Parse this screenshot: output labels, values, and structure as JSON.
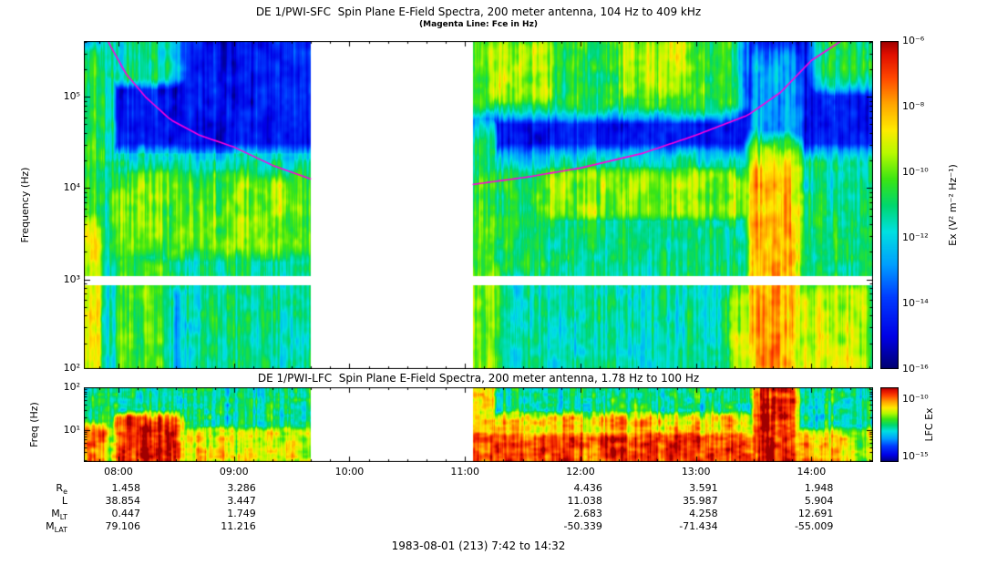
{
  "chart_data": {
    "type": "heatmap",
    "description": "Two stacked frequency-time radio spectrograms (dynamic spectra) from the DE 1 Plasma Wave Instrument with rainbow color scale, a magenta electron cyclotron frequency (Fce) overlay line, a white data gap between ~09:40 and ~11:04, orbit ephemeris rows and a date footer.",
    "footer": "1983-08-01 (213) 7:42 to 14:32",
    "time_range_min": [
      0,
      410
    ],
    "time_start_label": "7:42",
    "time_end_label": "14:32",
    "data_gaps_min": [
      [
        118,
        202
      ]
    ],
    "time_ticks": [
      {
        "label": "08:00",
        "t_min": 18
      },
      {
        "label": "09:00",
        "t_min": 78
      },
      {
        "label": "10:00",
        "t_min": 138
      },
      {
        "label": "11:00",
        "t_min": 198
      },
      {
        "label": "12:00",
        "t_min": 258
      },
      {
        "label": "13:00",
        "t_min": 318
      },
      {
        "label": "14:00",
        "t_min": 378
      }
    ],
    "panels": [
      {
        "id": "sfc",
        "title": "DE 1/PWI-SFC  Spin Plane E-Field Spectra, 200 meter antenna, 104 Hz to 409 kHz",
        "subtitle": "(Magenta Line: Fce in Hz)",
        "ylabel": "Frequency (Hz)",
        "ylog_range": [
          2.017,
          5.612
        ],
        "yticks": [
          {
            "label": "10⁵",
            "exp": 5
          },
          {
            "label": "10⁴",
            "exp": 4
          },
          {
            "label": "10³",
            "exp": 3
          },
          {
            "label": "10²",
            "exp": 2
          }
        ],
        "value_range": [
          -16,
          -6
        ],
        "seed": 3,
        "stripe": 2.2,
        "white_band_logf": [
          2.94,
          3.04
        ],
        "colorbar": {
          "label": "Ex (V² m⁻² Hz⁻¹)",
          "range": [
            -16,
            -6
          ],
          "ticks": [
            {
              "label": "10⁻⁶",
              "exp": -6
            },
            {
              "label": "10⁻⁸",
              "exp": -8
            },
            {
              "label": "10⁻¹⁰",
              "exp": -10
            },
            {
              "label": "10⁻¹²",
              "exp": -12
            },
            {
              "label": "10⁻¹⁴",
              "exp": -14
            },
            {
              "label": "10⁻¹⁶",
              "exp": -16
            }
          ]
        },
        "fce_line": {
          "color": "#ff00dd",
          "points": [
            [
              0,
              6.2
            ],
            [
              8,
              5.8
            ],
            [
              14,
              5.55
            ],
            [
              22,
              5.25
            ],
            [
              32,
              5.0
            ],
            [
              45,
              4.75
            ],
            [
              60,
              4.58
            ],
            [
              78,
              4.45
            ],
            [
              98,
              4.25
            ],
            [
              118,
              4.1
            ],
            [
              140,
              3.98
            ],
            [
              165,
              3.93
            ],
            [
              185,
              3.96
            ],
            [
              202,
              4.04
            ],
            [
              230,
              4.12
            ],
            [
              258,
              4.22
            ],
            [
              290,
              4.38
            ],
            [
              318,
              4.58
            ],
            [
              345,
              4.8
            ],
            [
              362,
              5.05
            ],
            [
              378,
              5.4
            ],
            [
              394,
              5.62
            ],
            [
              410,
              5.9
            ]
          ]
        },
        "features": [
          {
            "t": [
              -20,
              430
            ],
            "logf": [
              1.8,
              2.95
            ],
            "logp": -12.6,
            "st": 30,
            "sf": 0.3
          },
          {
            "t": [
              -20,
              430
            ],
            "logf": [
              3.0,
              4.2
            ],
            "logp": -11.2,
            "st": 30,
            "sf": 0.25
          },
          {
            "t": [
              -20,
              430
            ],
            "logf": [
              4.25,
              5.75
            ],
            "logp": -14.6,
            "st": 30,
            "sf": 0.4
          },
          {
            "t": [
              25,
              112
            ],
            "logf": [
              3.4,
              4.0
            ],
            "logp": -9.9,
            "st": 18,
            "sf": 0.3
          },
          {
            "t": [
              60,
              115
            ],
            "logf": [
              2.05,
              2.9
            ],
            "logp": -11.3,
            "st": 15,
            "sf": 0.3
          },
          {
            "t": [
              0,
              9
            ],
            "logf": [
              2.0,
              5.2
            ],
            "logp": -10.6,
            "st": 4,
            "sf": 0.5
          },
          {
            "t": [
              0,
              7
            ],
            "logf": [
              2.1,
              3.4
            ],
            "logp": -8.9,
            "st": 3,
            "sf": 0.4
          },
          {
            "t": [
              12,
              15
            ],
            "logf": [
              2.0,
              5.4
            ],
            "logp": -11.6,
            "st": 2,
            "sf": 0.4
          },
          {
            "t": [
              22,
              40
            ],
            "logf": [
              2.0,
              3.1
            ],
            "logp": -10.1,
            "st": 8,
            "sf": 0.3
          },
          {
            "t": [
              15,
              42
            ],
            "logf": [
              5.25,
              5.62
            ],
            "logp": -11.2,
            "st": 10,
            "sf": 0.15
          },
          {
            "t": [
              15,
              115
            ],
            "logf": [
              4.28,
              4.36
            ],
            "logp": -11.8,
            "st": 12,
            "sf": 0.05
          },
          {
            "t": [
              205,
              334
            ],
            "logf": [
              4.95,
              5.65
            ],
            "logp": -10.6,
            "st": 10,
            "sf": 0.2
          },
          {
            "t": [
              213,
              240
            ],
            "logf": [
              5.05,
              5.5
            ],
            "logp": -9.4,
            "st": 8,
            "sf": 0.2
          },
          {
            "t": [
              283,
              312
            ],
            "logf": [
              5.1,
              5.55
            ],
            "logp": -9.5,
            "st": 8,
            "sf": 0.2
          },
          {
            "t": [
              203,
              238
            ],
            "logf": [
              3.2,
              4.05
            ],
            "logp": -10.4,
            "st": 8,
            "sf": 0.3
          },
          {
            "t": [
              240,
              345
            ],
            "logf": [
              3.75,
              4.12
            ],
            "logp": -9.7,
            "st": 12,
            "sf": 0.15
          },
          {
            "t": [
              203,
              215
            ],
            "logf": [
              1.9,
              3.0
            ],
            "logp": -9.8,
            "st": 4,
            "sf": 0.4
          },
          {
            "t": [
              204,
              212
            ],
            "logf": [
              3.0,
              4.4
            ],
            "logp": -10.9,
            "st": 3,
            "sf": 0.4
          },
          {
            "t": [
              215,
              345
            ],
            "logf": [
              1.9,
              2.9
            ],
            "logp": -11.5,
            "st": 15,
            "sf": 0.3
          },
          {
            "t": [
              350,
              367
            ],
            "logf": [
              2.4,
              4.1
            ],
            "logp": -8.1,
            "st": 6,
            "sf": 0.4
          },
          {
            "t": [
              352,
              366
            ],
            "logf": [
              1.9,
              2.5
            ],
            "logp": -7.9,
            "st": 5,
            "sf": 0.3
          },
          {
            "t": [
              350,
              369
            ],
            "logf": [
              4.1,
              5.2
            ],
            "logp": -12.6,
            "st": 5,
            "sf": 0.5
          },
          {
            "t": [
              342,
              402
            ],
            "logf": [
              1.9,
              2.75
            ],
            "logp": -9.2,
            "st": 10,
            "sf": 0.3
          },
          {
            "t": [
              385,
              412
            ],
            "logf": [
              5.25,
              5.68
            ],
            "logp": -10.9,
            "st": 8,
            "sf": 0.2
          },
          {
            "t": [
              370,
              412
            ],
            "logf": [
              2.9,
              3.9
            ],
            "logp": -11.0,
            "st": 10,
            "sf": 0.3
          }
        ]
      },
      {
        "id": "lfc",
        "title": "DE 1/PWI-LFC  Spin Plane E-Field Spectra, 200 meter antenna, 1.78 Hz to 100 Hz",
        "ylabel": "Freq (Hz)",
        "ylog_range": [
          0.25,
          2.0
        ],
        "yticks": [
          {
            "label": "10²",
            "exp": 2
          },
          {
            "label": "10¹",
            "exp": 1
          }
        ],
        "value_range": [
          -15.5,
          -9
        ],
        "seed": 17,
        "stripe": 2.0,
        "colorbar": {
          "label": "LFC Ex",
          "range": [
            -15.5,
            -9
          ],
          "ticks": [
            {
              "label": "10⁻¹⁰",
              "exp": -10
            },
            {
              "label": "10⁻¹⁵",
              "exp": -15
            }
          ]
        },
        "features": [
          {
            "t": [
              -20,
              430
            ],
            "logf": [
              0.1,
              2.1
            ],
            "logp": -12.4,
            "st": 30,
            "sf": 0.3
          },
          {
            "t": [
              -20,
              430
            ],
            "logf": [
              0.1,
              0.95
            ],
            "logp": -11.2,
            "st": 30,
            "sf": 0.2
          },
          {
            "t": [
              0,
              10
            ],
            "logf": [
              0.1,
              0.9
            ],
            "logp": -10.0,
            "st": 4,
            "sf": 0.3
          },
          {
            "t": [
              22,
              46
            ],
            "logf": [
              0.1,
              1.15
            ],
            "logp": -9.3,
            "st": 7,
            "sf": 0.3
          },
          {
            "t": [
              50,
              115
            ],
            "logf": [
              0.1,
              0.8
            ],
            "logp": -10.9,
            "st": 10,
            "sf": 0.25
          },
          {
            "t": [
              204,
              352
            ],
            "logf": [
              0.1,
              0.8
            ],
            "logp": -9.6,
            "st": 6,
            "sf": 0.25
          },
          {
            "t": [
              204,
              352
            ],
            "logf": [
              0.1,
              1.2
            ],
            "logp": -10.6,
            "st": 6,
            "sf": 0.3
          },
          {
            "t": [
              203,
              212
            ],
            "logf": [
              0.1,
              2.0
            ],
            "logp": -10.6,
            "st": 3,
            "sf": 0.5
          },
          {
            "t": [
              351,
              367
            ],
            "logf": [
              0.1,
              2.0
            ],
            "logp": -9.3,
            "st": 5,
            "sf": 0.5
          },
          {
            "t": [
              368,
              393
            ],
            "logf": [
              0.1,
              0.85
            ],
            "logp": -10.4,
            "st": 8,
            "sf": 0.25
          }
        ]
      }
    ],
    "ephemeris": {
      "rows": [
        {
          "label": "R",
          "sub": "e",
          "values": [
            "1.458",
            "3.286",
            "",
            "",
            "4.436",
            "3.591",
            "1.948"
          ]
        },
        {
          "label": "L",
          "sub": "",
          "values": [
            "38.854",
            "3.447",
            "",
            "",
            "11.038",
            "35.987",
            "5.904"
          ]
        },
        {
          "label": "M",
          "sub": "LT",
          "values": [
            "0.447",
            "1.749",
            "",
            "",
            "2.683",
            "4.258",
            "12.691"
          ]
        },
        {
          "label": "M",
          "sub": "LAT",
          "values": [
            "79.106",
            "11.216",
            "",
            "",
            "-50.339",
            "-71.434",
            "-55.009"
          ]
        }
      ]
    }
  }
}
